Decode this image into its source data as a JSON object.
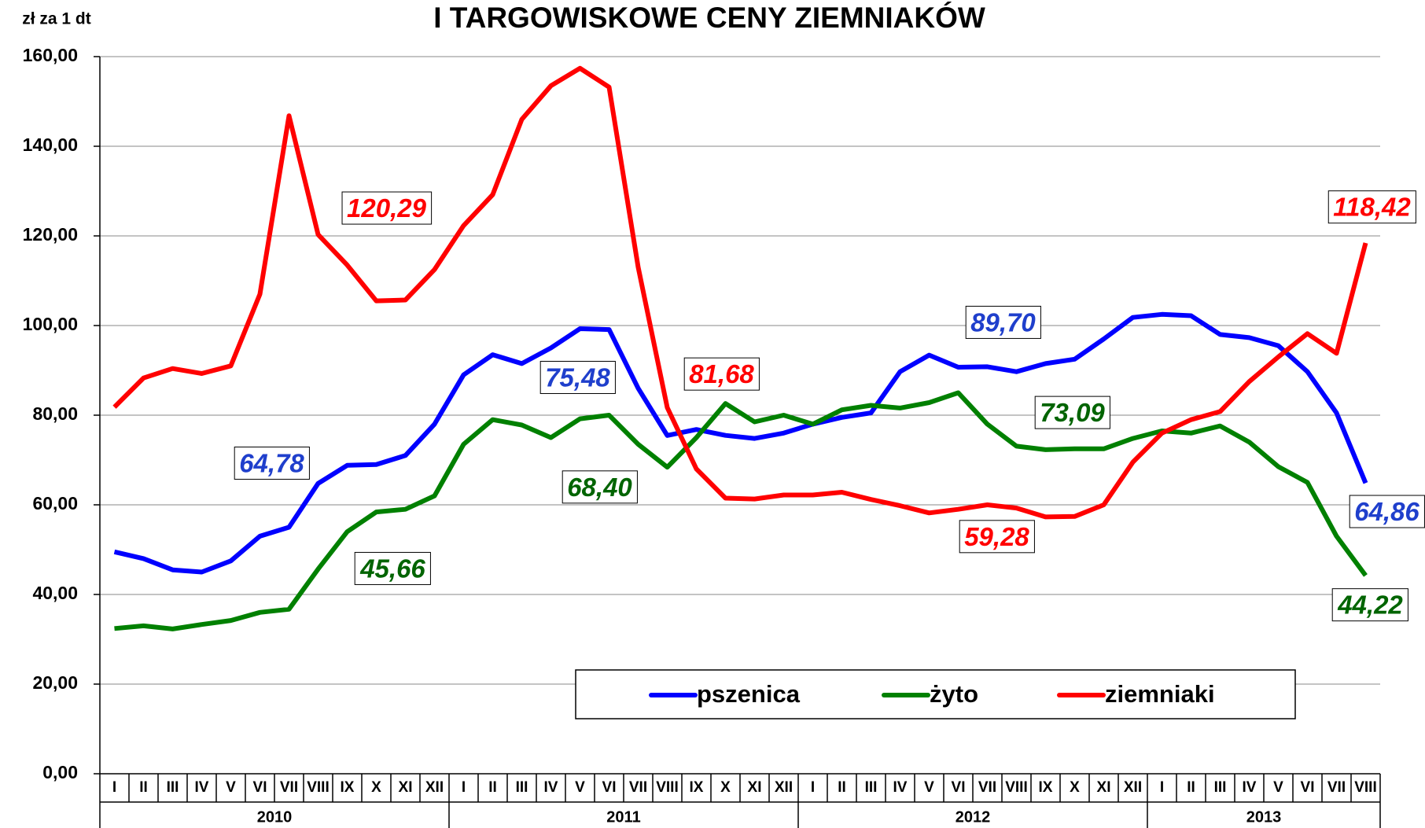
{
  "chart_data": {
    "type": "line",
    "title": "I TARGOWISKOWE CENY ZIEMNIAKÓW",
    "y_label": "zł za 1 dt",
    "categories": [
      "I",
      "II",
      "III",
      "IV",
      "V",
      "VI",
      "VII",
      "VIII",
      "IX",
      "X",
      "XI",
      "XII",
      "I",
      "II",
      "III",
      "IV",
      "V",
      "VI",
      "VII",
      "VIII",
      "IX",
      "X",
      "XI",
      "XII",
      "I",
      "II",
      "III",
      "IV",
      "V",
      "VI",
      "VII",
      "VIII",
      "IX",
      "X",
      "XI",
      "XII",
      "I",
      "II",
      "III",
      "IV",
      "V",
      "VI",
      "VII",
      "VIII"
    ],
    "years": [
      "2010",
      "2011",
      "2012",
      "2013"
    ],
    "ylim": [
      0,
      160
    ],
    "yticks": [
      {
        "value": 0,
        "label": "0,00"
      },
      {
        "value": 20,
        "label": "20,00"
      },
      {
        "value": 40,
        "label": "40,00"
      },
      {
        "value": 60,
        "label": "60,00"
      },
      {
        "value": 80,
        "label": "80,00"
      },
      {
        "value": 100,
        "label": "100,00"
      },
      {
        "value": 120,
        "label": "120,00"
      },
      {
        "value": 140,
        "label": "140,00"
      },
      {
        "value": 160,
        "label": "160,00"
      }
    ],
    "grid": true,
    "series": [
      {
        "name": "pszenica",
        "color": "#0000ff",
        "values": [
          49.5,
          48,
          45.5,
          45,
          47.5,
          53,
          55,
          64.78,
          68.8,
          69,
          71,
          78,
          89,
          93.5,
          91.5,
          95,
          99.3,
          99.1,
          86,
          75.48,
          76.8,
          75.5,
          74.8,
          76,
          78,
          79.5,
          80.5,
          89.7,
          93.4,
          90.7,
          90.8,
          89.7,
          91.5,
          92.5,
          97,
          101.8,
          102.5,
          102.2,
          98,
          97.3,
          95.5,
          89.7,
          80.5,
          64.86
        ],
        "value_labels": [
          null,
          null,
          null,
          null,
          null,
          null,
          null,
          "64,78",
          null,
          null,
          null,
          null,
          null,
          null,
          null,
          null,
          null,
          null,
          null,
          "75,48",
          null,
          null,
          null,
          null,
          null,
          null,
          null,
          null,
          null,
          null,
          null,
          "89,70",
          null,
          null,
          null,
          null,
          null,
          null,
          null,
          null,
          null,
          null,
          null,
          "64,86"
        ]
      },
      {
        "name": "żyto",
        "color": "#008000",
        "values": [
          32.4,
          33,
          32.3,
          33.3,
          34.2,
          36,
          36.7,
          45.66,
          54,
          58.4,
          59,
          62,
          73.5,
          79,
          77.8,
          75,
          79.2,
          80,
          73.5,
          68.4,
          75,
          82.6,
          78.5,
          80,
          78,
          81.2,
          82.2,
          81.6,
          82.8,
          85,
          78,
          73.09,
          72.3,
          72.5,
          72.5,
          74.8,
          76.5,
          76,
          77.6,
          74,
          68.5,
          65,
          53,
          44.22
        ],
        "value_labels": [
          null,
          null,
          null,
          null,
          null,
          null,
          null,
          "45,66",
          null,
          null,
          null,
          null,
          null,
          null,
          null,
          null,
          null,
          null,
          null,
          "68,40",
          null,
          null,
          null,
          null,
          null,
          null,
          null,
          null,
          null,
          null,
          null,
          "73,09",
          null,
          null,
          null,
          null,
          null,
          null,
          null,
          null,
          null,
          null,
          null,
          "44,22"
        ]
      },
      {
        "name": "ziemniaki",
        "color": "#ff0000",
        "values": [
          81.8,
          88.3,
          90.4,
          89.3,
          91,
          107,
          146.8,
          120.29,
          113.5,
          105.5,
          105.7,
          112.5,
          122.3,
          129.2,
          146,
          153.5,
          157.4,
          153.2,
          113,
          81.68,
          68,
          61.5,
          61.3,
          62.2,
          62.2,
          62.8,
          61.2,
          59.8,
          58.2,
          59,
          60,
          59.28,
          57.3,
          57.4,
          60,
          69.5,
          76,
          79,
          80.8,
          87.5,
          93,
          98.2,
          93.8,
          118.42
        ],
        "value_labels": [
          null,
          null,
          null,
          null,
          null,
          null,
          null,
          "120,29",
          null,
          null,
          null,
          null,
          null,
          null,
          null,
          null,
          null,
          null,
          null,
          "81,68",
          null,
          null,
          null,
          null,
          null,
          null,
          null,
          null,
          null,
          null,
          null,
          "59,28",
          null,
          null,
          null,
          null,
          null,
          null,
          null,
          null,
          null,
          null,
          null,
          "118,42"
        ]
      }
    ]
  }
}
